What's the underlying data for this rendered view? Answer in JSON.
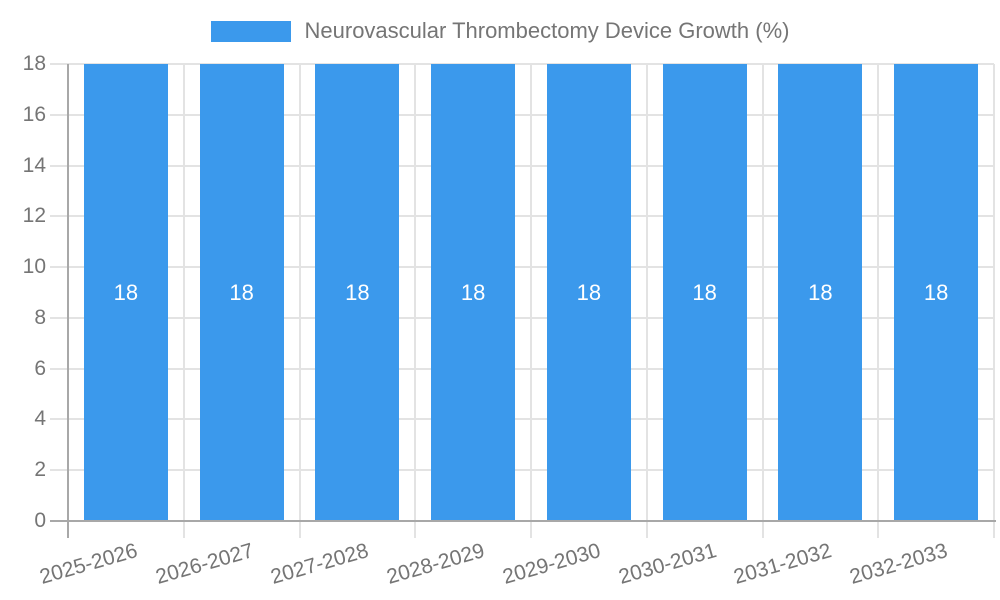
{
  "legend": {
    "label": "Neurovascular Thrombectomy Device Growth (%)"
  },
  "chart_data": {
    "type": "bar",
    "title": "Neurovascular Thrombectomy Device Growth (%)",
    "categories": [
      "2025-2026",
      "2026-2027",
      "2027-2028",
      "2028-2029",
      "2029-2030",
      "2030-2031",
      "2031-2032",
      "2032-2033"
    ],
    "values": [
      18,
      18,
      18,
      18,
      18,
      18,
      18,
      18
    ],
    "bar_labels": [
      "18",
      "18",
      "18",
      "18",
      "18",
      "18",
      "18",
      "18"
    ],
    "series": [
      {
        "name": "Neurovascular Thrombectomy Device Growth (%)",
        "values": [
          18,
          18,
          18,
          18,
          18,
          18,
          18,
          18
        ]
      }
    ],
    "xlabel": "",
    "ylabel": "",
    "ylim": [
      0,
      18
    ],
    "yticks": [
      0,
      2,
      4,
      6,
      8,
      10,
      12,
      14,
      16,
      18
    ],
    "grid": true,
    "legend_position": "top",
    "x_label_rotation_deg": -16,
    "colors": {
      "bar": "#3B99EC",
      "bar_label": "#FFFFFF",
      "text": "#757575",
      "grid": "#E3E3E3",
      "axis": "#A8A8A8",
      "background": "#FFFFFF"
    }
  }
}
